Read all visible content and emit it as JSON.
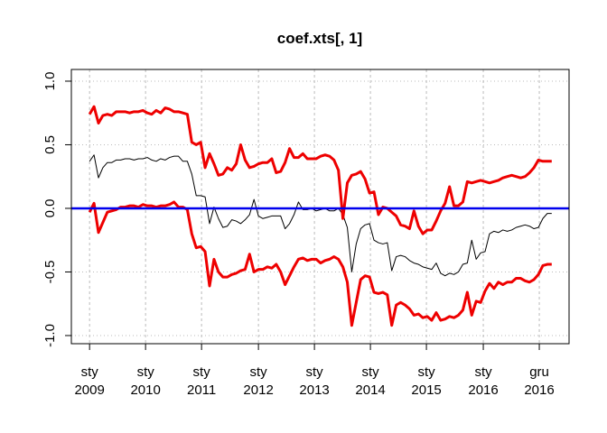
{
  "chart_data": {
    "type": "line",
    "title": "coef.xts[, 1]",
    "xlim": [
      -4.1,
      107.9
    ],
    "xticks": [
      {
        "value": 0,
        "label": [
          "sty",
          "2009"
        ]
      },
      {
        "value": 12.6,
        "label": [
          "sty",
          "2010"
        ]
      },
      {
        "value": 25.2,
        "label": [
          "sty",
          "2011"
        ]
      },
      {
        "value": 38,
        "label": [
          "sty",
          "2012"
        ]
      },
      {
        "value": 50.6,
        "label": [
          "sty",
          "2013"
        ]
      },
      {
        "value": 63.2,
        "label": [
          "sty",
          "2014"
        ]
      },
      {
        "value": 75.8,
        "label": [
          "sty",
          "2015"
        ]
      },
      {
        "value": 88.6,
        "label": [
          "sty",
          "2016"
        ]
      },
      {
        "value": 101.2,
        "label": [
          "gru",
          "2016"
        ]
      }
    ],
    "ylim": [
      -1.064,
      1.092
    ],
    "yticks": [
      {
        "value": -1,
        "label": "-1.0"
      },
      -0.5,
      {
        "value": 0,
        "label": "0.0"
      },
      0.5,
      {
        "value": 1,
        "label": "1.0"
      }
    ],
    "grid": true,
    "hline": {
      "value": 0,
      "color": "#0000ee"
    },
    "series": [
      {
        "color": "#000000",
        "width": 1,
        "values": [
          0.37,
          0.42,
          0.24,
          0.32,
          0.36,
          0.36,
          0.38,
          0.38,
          0.39,
          0.39,
          0.38,
          0.39,
          0.39,
          0.4,
          0.38,
          0.37,
          0.39,
          0.38,
          0.4,
          0.41,
          0.41,
          0.37,
          0.37,
          0.27,
          0.1,
          0.1,
          0.09,
          -0.12,
          0.01,
          -0.08,
          -0.15,
          -0.14,
          -0.09,
          -0.1,
          -0.12,
          -0.09,
          -0.05,
          0.07,
          -0.06,
          -0.08,
          -0.07,
          -0.06,
          -0.06,
          -0.06,
          -0.16,
          -0.12,
          -0.05,
          0.05,
          -0.01,
          -0.01,
          0.0,
          -0.02,
          -0.01,
          0.0,
          -0.02,
          -0.02,
          0.0,
          -0.05,
          -0.15,
          -0.5,
          -0.28,
          -0.16,
          -0.13,
          -0.12,
          -0.25,
          -0.27,
          -0.28,
          -0.27,
          -0.49,
          -0.38,
          -0.37,
          -0.38,
          -0.41,
          -0.43,
          -0.44,
          -0.46,
          -0.47,
          -0.48,
          -0.43,
          -0.51,
          -0.53,
          -0.51,
          -0.52,
          -0.5,
          -0.44,
          -0.43,
          -0.25,
          -0.4,
          -0.35,
          -0.34,
          -0.2,
          -0.18,
          -0.19,
          -0.17,
          -0.18,
          -0.17,
          -0.15,
          -0.14,
          -0.13,
          -0.14,
          -0.16,
          -0.15,
          -0.08,
          -0.04,
          -0.04
        ]
      },
      {
        "color": "#ee0000",
        "width": 3,
        "values": [
          0.74,
          0.8,
          0.67,
          0.73,
          0.74,
          0.73,
          0.76,
          0.76,
          0.76,
          0.75,
          0.76,
          0.76,
          0.77,
          0.75,
          0.74,
          0.77,
          0.75,
          0.79,
          0.78,
          0.76,
          0.76,
          0.75,
          0.74,
          0.52,
          0.5,
          0.52,
          0.32,
          0.43,
          0.35,
          0.26,
          0.27,
          0.32,
          0.3,
          0.35,
          0.5,
          0.38,
          0.32,
          0.33,
          0.35,
          0.36,
          0.36,
          0.39,
          0.28,
          0.29,
          0.36,
          0.47,
          0.4,
          0.4,
          0.43,
          0.39,
          0.39,
          0.39,
          0.41,
          0.42,
          0.41,
          0.38,
          0.3,
          -0.08,
          0.2,
          0.26,
          0.27,
          0.29,
          0.23,
          0.12,
          0.13,
          -0.05,
          0.01,
          0.0,
          -0.03,
          -0.06,
          -0.13,
          -0.14,
          -0.16,
          -0.02,
          -0.14,
          -0.2,
          -0.17,
          -0.17,
          -0.1,
          -0.02,
          0.04,
          0.17,
          0.02,
          0.02,
          0.05,
          0.21,
          0.2,
          0.21,
          0.22,
          0.21,
          0.2,
          0.21,
          0.22,
          0.24,
          0.25,
          0.26,
          0.25,
          0.24,
          0.25,
          0.28,
          0.32,
          0.38,
          0.37,
          0.37,
          0.37
        ]
      },
      {
        "color": "#ee0000",
        "width": 3,
        "values": [
          -0.03,
          0.04,
          -0.19,
          -0.11,
          -0.03,
          -0.02,
          -0.01,
          0.01,
          0.01,
          0.02,
          0.02,
          0.01,
          0.03,
          0.02,
          0.02,
          0.01,
          0.02,
          0.02,
          0.03,
          0.05,
          0.01,
          0.01,
          -0.01,
          -0.2,
          -0.31,
          -0.3,
          -0.34,
          -0.61,
          -0.4,
          -0.5,
          -0.54,
          -0.54,
          -0.52,
          -0.51,
          -0.49,
          -0.48,
          -0.36,
          -0.5,
          -0.48,
          -0.48,
          -0.46,
          -0.47,
          -0.44,
          -0.5,
          -0.6,
          -0.53,
          -0.46,
          -0.4,
          -0.39,
          -0.41,
          -0.4,
          -0.4,
          -0.43,
          -0.41,
          -0.4,
          -0.38,
          -0.4,
          -0.46,
          -0.58,
          -0.92,
          -0.74,
          -0.56,
          -0.53,
          -0.54,
          -0.66,
          -0.67,
          -0.66,
          -0.68,
          -0.92,
          -0.76,
          -0.74,
          -0.76,
          -0.79,
          -0.84,
          -0.83,
          -0.86,
          -0.85,
          -0.88,
          -0.82,
          -0.88,
          -0.87,
          -0.85,
          -0.86,
          -0.84,
          -0.8,
          -0.66,
          -0.84,
          -0.73,
          -0.74,
          -0.65,
          -0.59,
          -0.63,
          -0.58,
          -0.6,
          -0.58,
          -0.58,
          -0.55,
          -0.55,
          -0.57,
          -0.58,
          -0.56,
          -0.52,
          -0.45,
          -0.44,
          -0.44
        ]
      }
    ]
  }
}
